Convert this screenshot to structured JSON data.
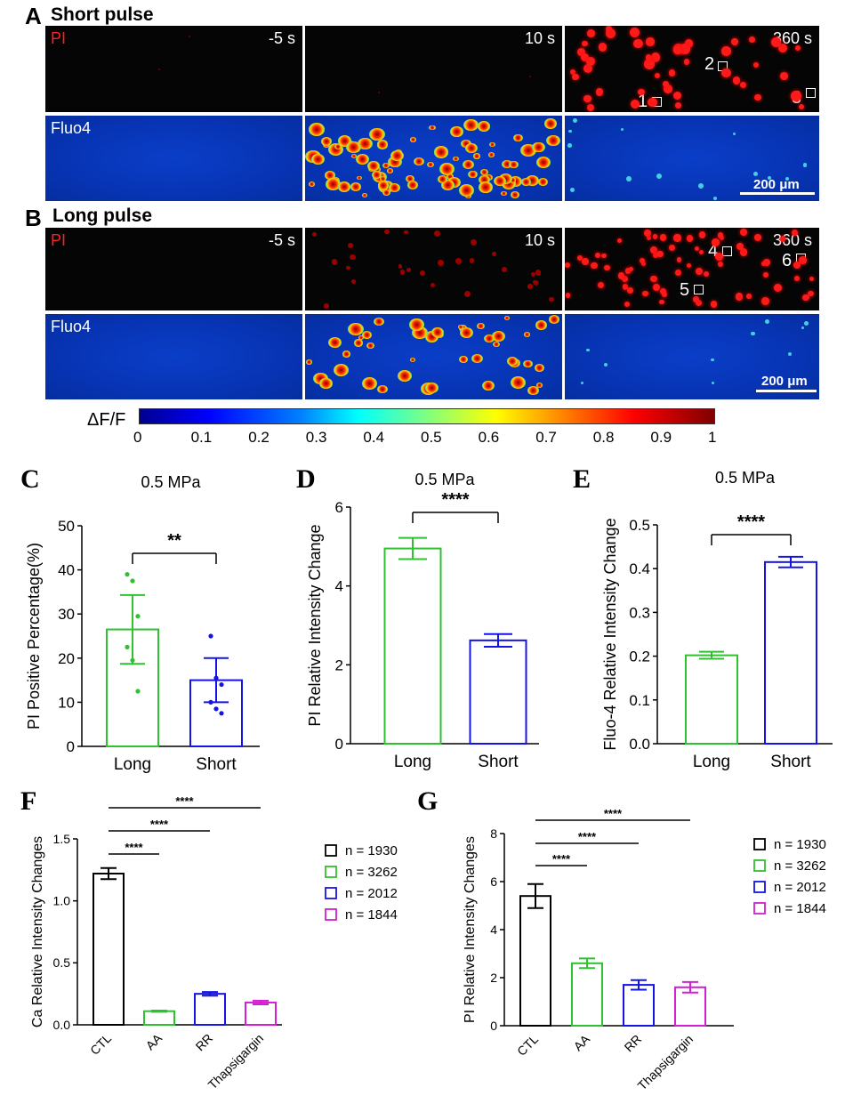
{
  "panels": {
    "A": {
      "letter": "A",
      "title": "Short pulse"
    },
    "B": {
      "letter": "B",
      "title": "Long pulse"
    }
  },
  "micro": {
    "pi_label": "PI",
    "fluo_label": "Fluo4",
    "times": [
      "-5 s",
      "10 s",
      "360 s"
    ],
    "scale_bar": "200 μm",
    "rois_A": [
      "1",
      "2",
      "3"
    ],
    "rois_B": [
      "4",
      "5",
      "6"
    ]
  },
  "colorbar": {
    "label": "ΔF/F",
    "ticks": [
      "0",
      "0.1",
      "0.2",
      "0.3",
      "0.4",
      "0.5",
      "0.6",
      "0.7",
      "0.8",
      "0.9",
      "1"
    ]
  },
  "colors": {
    "long": "#2fc12f",
    "short": "#1414e6",
    "ctl": "#000000",
    "aa": "#2fc12f",
    "rr": "#1414e6",
    "thapsigargin": "#d21fd2",
    "pi_red": "#ff2020"
  },
  "chart_data": [
    {
      "id": "C",
      "letter": "C",
      "type": "bar",
      "title": "0.5 MPa",
      "xlabel": "",
      "ylabel": "PI Positive Percentage(%)",
      "categories": [
        "Long",
        "Short"
      ],
      "values": [
        26.5,
        15
      ],
      "errors": [
        7.8,
        5
      ],
      "points": [
        [
          39,
          37.5,
          29.5,
          22.5,
          19.5,
          12.5
        ],
        [
          25,
          15.5,
          14,
          10,
          8.5,
          7.5
        ]
      ],
      "ylim": [
        0,
        50
      ],
      "yticks": [
        "0",
        "10",
        "20",
        "30",
        "40",
        "50"
      ],
      "significance": [
        {
          "from": 0,
          "to": 1,
          "label": "**"
        }
      ]
    },
    {
      "id": "D",
      "letter": "D",
      "type": "bar",
      "title": "0.5 MPa",
      "xlabel": "",
      "ylabel": "PI Relative Intensity Change",
      "categories": [
        "Long",
        "Short"
      ],
      "values": [
        4.95,
        2.62
      ],
      "errors": [
        0.27,
        0.16
      ],
      "ylim": [
        0,
        6
      ],
      "yticks": [
        "0",
        "2",
        "4",
        "6"
      ],
      "significance": [
        {
          "from": 0,
          "to": 1,
          "label": "****"
        }
      ]
    },
    {
      "id": "E",
      "letter": "E",
      "type": "bar",
      "title": "0.5 MPa",
      "xlabel": "",
      "ylabel": "Fluo-4 Relative Intensity Change",
      "categories": [
        "Long",
        "Short"
      ],
      "values": [
        0.202,
        0.415
      ],
      "errors": [
        0.008,
        0.012
      ],
      "ylim": [
        0,
        0.5
      ],
      "yticks": [
        "0.0",
        "0.1",
        "0.2",
        "0.3",
        "0.4",
        "0.5"
      ],
      "significance": [
        {
          "from": 0,
          "to": 1,
          "label": "****"
        }
      ]
    },
    {
      "id": "F",
      "letter": "F",
      "type": "bar",
      "title": "",
      "xlabel": "",
      "ylabel": "Ca Relative Intensity Changes",
      "categories": [
        "CTL",
        "AA",
        "RR",
        "Thapsigargin"
      ],
      "values": [
        1.22,
        0.11,
        0.25,
        0.18
      ],
      "errors": [
        0.045,
        0.005,
        0.015,
        0.015
      ],
      "ylim": [
        0,
        1.5
      ],
      "yticks": [
        "0.0",
        "0.5",
        "1.0",
        "1.5"
      ],
      "legend": [
        "n = 1930",
        "n = 3262",
        "n = 2012",
        "n = 1844"
      ],
      "significance": [
        {
          "from": 0,
          "to": 1,
          "label": "****"
        },
        {
          "from": 0,
          "to": 2,
          "label": "****"
        },
        {
          "from": 0,
          "to": 3,
          "label": "****"
        }
      ]
    },
    {
      "id": "G",
      "letter": "G",
      "type": "bar",
      "title": "",
      "xlabel": "",
      "ylabel": "PI Relative Intensity Changes",
      "categories": [
        "CTL",
        "AA",
        "RR",
        "Thapsigargin"
      ],
      "values": [
        5.4,
        2.6,
        1.7,
        1.6
      ],
      "errors": [
        0.5,
        0.2,
        0.2,
        0.22
      ],
      "ylim": [
        0,
        8
      ],
      "yticks": [
        "0",
        "2",
        "4",
        "6",
        "8"
      ],
      "legend": [
        "n = 1930",
        "n = 3262",
        "n = 2012",
        "n = 1844"
      ],
      "significance": [
        {
          "from": 0,
          "to": 1,
          "label": "****"
        },
        {
          "from": 0,
          "to": 2,
          "label": "****"
        },
        {
          "from": 0,
          "to": 3,
          "label": "****"
        }
      ]
    }
  ]
}
